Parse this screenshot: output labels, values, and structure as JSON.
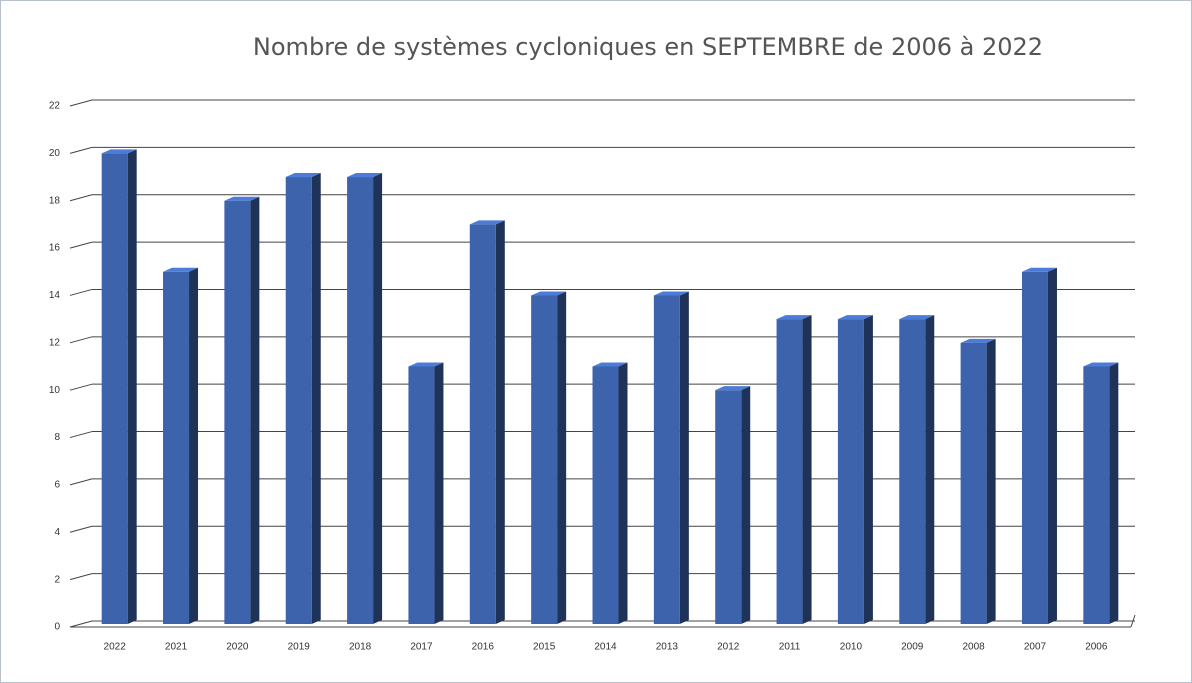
{
  "chart_data": {
    "type": "bar3d",
    "title": "Nombre de systèmes cycloniques en SEPTEMBRE de 2006 à 2022",
    "categories": [
      "2022",
      "2021",
      "2020",
      "2019",
      "2018",
      "2017",
      "2016",
      "2015",
      "2014",
      "2013",
      "2012",
      "2011",
      "2010",
      "2009",
      "2008",
      "2007",
      "2006"
    ],
    "values": [
      20,
      15,
      18,
      19,
      19,
      11,
      17,
      14,
      11,
      14,
      10,
      13,
      13,
      13,
      12,
      15,
      11
    ],
    "color": "#3d63ad",
    "ylim": [
      0,
      22
    ],
    "yticks": [
      0,
      2,
      4,
      6,
      8,
      10,
      12,
      14,
      16,
      18,
      20,
      22
    ],
    "grid": true
  }
}
